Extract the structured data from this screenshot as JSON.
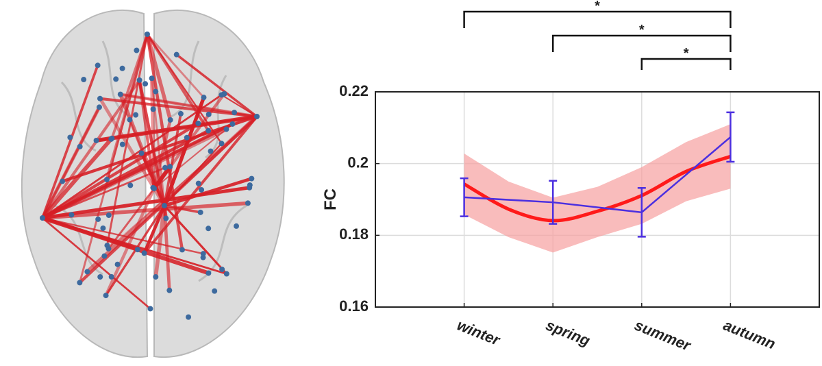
{
  "chart_data": {
    "type": "line",
    "ylabel": "FC",
    "categories": [
      "winter",
      "spring",
      "summer",
      "autumn"
    ],
    "xlim": [
      0,
      5
    ],
    "ylim": [
      0.16,
      0.22
    ],
    "yticks": [
      0.16,
      0.18,
      0.2,
      0.22
    ],
    "grid": true,
    "mean": {
      "color": "#4b2fe0",
      "values": [
        0.1906,
        0.1892,
        0.1864,
        0.2074
      ],
      "errors": [
        0.0053,
        0.006,
        0.0068,
        0.0069
      ]
    },
    "fit": {
      "color": "#ff1a1a",
      "band_color": "#f7a0a0",
      "x": [
        1,
        1.5,
        2,
        2.5,
        3,
        3.5,
        4
      ],
      "values": [
        0.1943,
        0.1873,
        0.1841,
        0.1867,
        0.1911,
        0.1978,
        0.202
      ],
      "upper": [
        0.2028,
        0.195,
        0.1905,
        0.1935,
        0.199,
        0.206,
        0.211
      ],
      "lower": [
        0.1858,
        0.1795,
        0.1752,
        0.1795,
        0.1832,
        0.1895,
        0.193
      ]
    },
    "significance": [
      {
        "from": "winter",
        "to": "autumn",
        "label": "*"
      },
      {
        "from": "spring",
        "to": "autumn",
        "label": "*"
      },
      {
        "from": "summer",
        "to": "autumn",
        "label": "*"
      }
    ]
  }
}
